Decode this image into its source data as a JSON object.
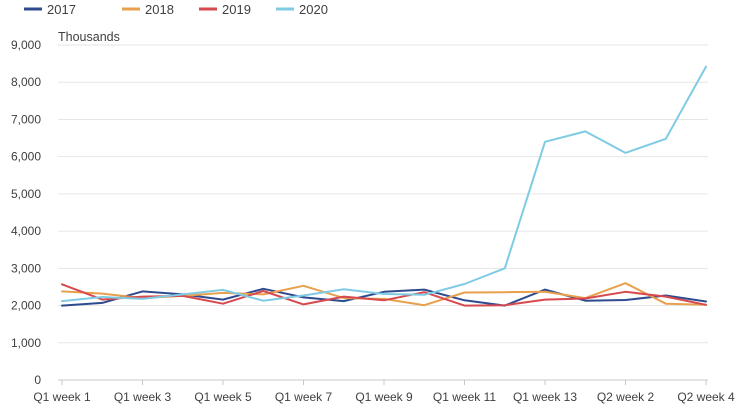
{
  "chart_data": {
    "type": "line",
    "unit_label": "Thousands",
    "ylim": [
      0,
      9000
    ],
    "yticks": [
      "0",
      "1,000",
      "2,000",
      "3,000",
      "4,000",
      "5,000",
      "6,000",
      "7,000",
      "8,000",
      "9,000"
    ],
    "x_labels": [
      "Q1 week 1",
      "Q1 week 3",
      "Q1 week 5",
      "Q1 week 7",
      "Q1 week 9",
      "Q1 week 11",
      "Q1 week 13",
      "Q2 week 2",
      "Q2 week 4"
    ],
    "grid": true,
    "legend_position": "top-left",
    "series": [
      {
        "name": "2017",
        "color": "#2e4b8f",
        "values": [
          2000,
          2070,
          2380,
          2300,
          2160,
          2450,
          2220,
          2120,
          2370,
          2430,
          2140,
          2000,
          2430,
          2130,
          2150,
          2270,
          2110
        ]
      },
      {
        "name": "2018",
        "color": "#e8a04d",
        "values": [
          2380,
          2320,
          2200,
          2260,
          2340,
          2300,
          2530,
          2200,
          2180,
          2010,
          2350,
          2360,
          2370,
          2200,
          2600,
          2050,
          2020
        ]
      },
      {
        "name": "2019",
        "color": "#d6494e",
        "values": [
          2570,
          2160,
          2240,
          2260,
          2050,
          2390,
          2030,
          2240,
          2140,
          2360,
          2000,
          2010,
          2160,
          2190,
          2370,
          2240,
          2020
        ]
      },
      {
        "name": "2020",
        "color": "#7fcbe3",
        "values": [
          2120,
          2230,
          2180,
          2300,
          2420,
          2130,
          2270,
          2440,
          2310,
          2290,
          2580,
          3000,
          6400,
          6680,
          6100,
          6480,
          8420
        ]
      }
    ]
  }
}
